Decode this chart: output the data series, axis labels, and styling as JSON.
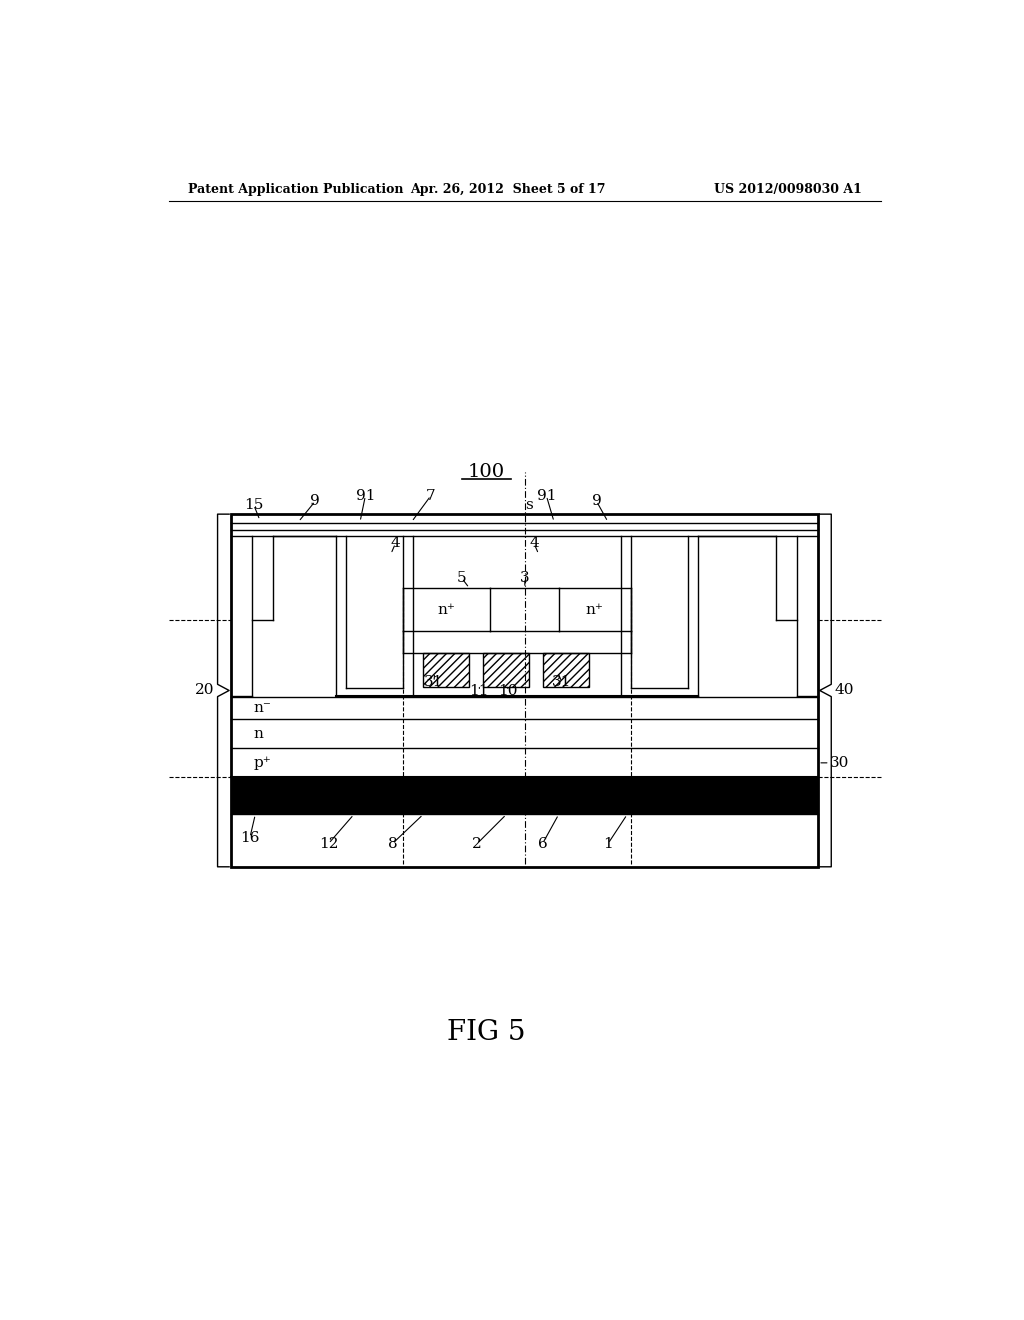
{
  "bg_color": "#ffffff",
  "title_text": "100",
  "fig_label": "FIG 5",
  "header_left": "Patent Application Publication",
  "header_mid": "Apr. 26, 2012  Sheet 5 of 17",
  "header_right": "US 2012/0098030 A1",
  "lw_thin": 1.0,
  "lw_med": 1.5,
  "lw_thick": 2.0
}
